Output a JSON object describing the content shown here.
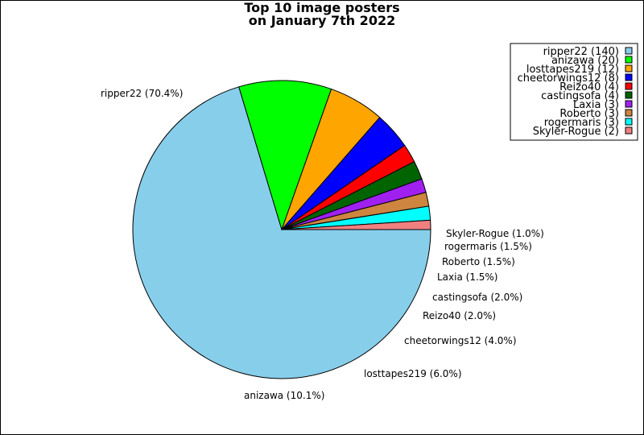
{
  "title_line1": "Top 10 image posters",
  "title_line2": "on January 7th 2022",
  "chart_data": {
    "type": "pie",
    "title": "Top 10 image posters on January 7th 2022",
    "slices": [
      {
        "name": "ripper22",
        "count": 140,
        "percent_label": "70.4%",
        "color": "#87ceeb"
      },
      {
        "name": "anizawa",
        "count": 20,
        "percent_label": "10.1%",
        "color": "#00ff00"
      },
      {
        "name": "losttapes219",
        "count": 12,
        "percent_label": "6.0%",
        "color": "#ffa500"
      },
      {
        "name": "cheetorwings12",
        "count": 8,
        "percent_label": "4.0%",
        "color": "#0000ff"
      },
      {
        "name": "Reizo40",
        "count": 4,
        "percent_label": "2.0%",
        "color": "#ff0000"
      },
      {
        "name": "castingsofa",
        "count": 4,
        "percent_label": "2.0%",
        "color": "#006400"
      },
      {
        "name": "Laxia",
        "count": 3,
        "percent_label": "1.5%",
        "color": "#a020f0"
      },
      {
        "name": "Roberto",
        "count": 3,
        "percent_label": "1.5%",
        "color": "#cd853f"
      },
      {
        "name": "rogermaris",
        "count": 3,
        "percent_label": "1.5%",
        "color": "#00ffff"
      },
      {
        "name": "Skyler-Rogue",
        "count": 2,
        "percent_label": "1.0%",
        "color": "#f08080"
      }
    ],
    "legend": "top-right"
  }
}
